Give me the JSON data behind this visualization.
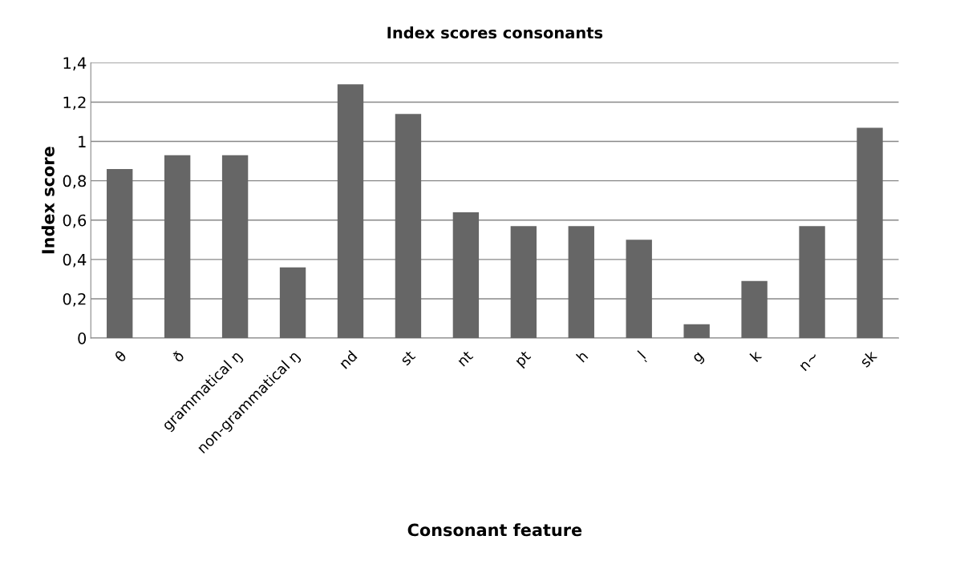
{
  "chart_data": {
    "type": "bar",
    "title": "Index scores consonants",
    "xlabel": "Consonant feature",
    "ylabel": "Index score",
    "categories": [
      "θ",
      "ð",
      "grammatical ŋ",
      "non-grammatical ŋ",
      "nd",
      "st",
      "nt",
      "pt",
      "h",
      "l̩",
      "g",
      "k",
      "n~",
      "sk"
    ],
    "values": [
      0.86,
      0.93,
      0.93,
      0.36,
      1.29,
      1.14,
      0.64,
      0.57,
      0.57,
      0.5,
      0.07,
      0.29,
      0.57,
      1.07
    ],
    "color": "#666666",
    "ylim": [
      0,
      1.4
    ],
    "yticks": [
      0,
      {
        "value": 0.2,
        "label": "0,2"
      },
      {
        "value": 0.4,
        "label": "0,4"
      },
      {
        "value": 0.6,
        "label": "0,6"
      },
      {
        "value": 0.8,
        "label": "0,8"
      },
      1,
      {
        "value": 1.2,
        "label": "1,2"
      },
      {
        "value": 1.4,
        "label": "1,4"
      }
    ],
    "grid": "y",
    "legend": false
  }
}
